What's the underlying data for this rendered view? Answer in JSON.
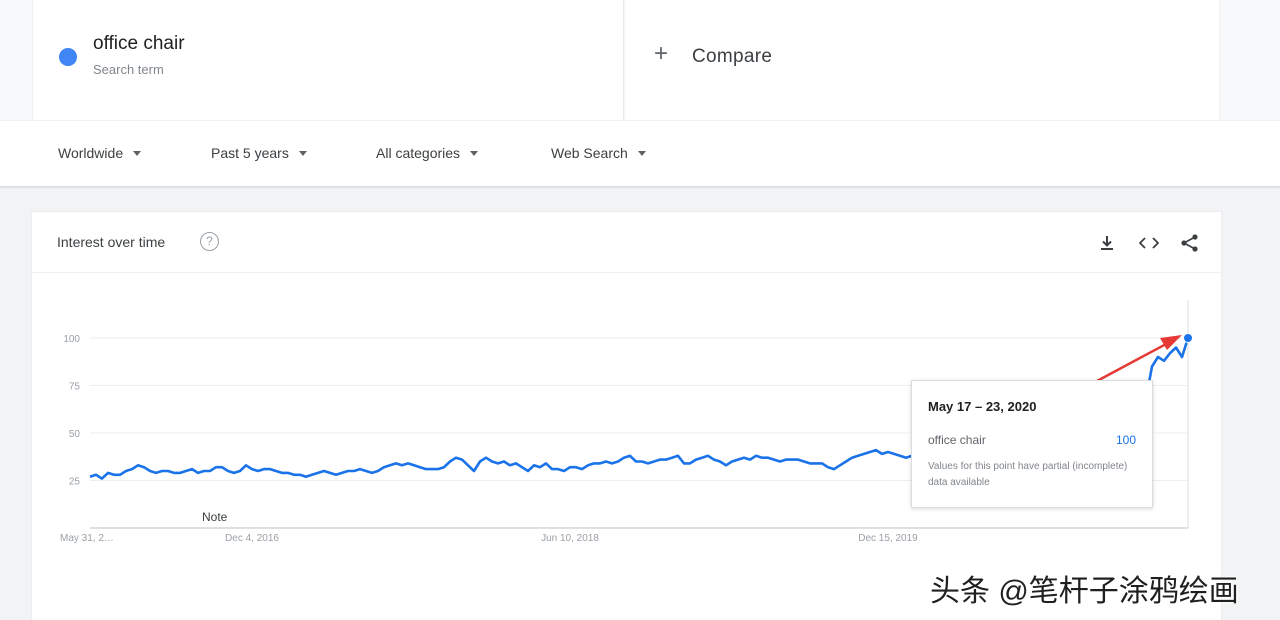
{
  "search_terms": [
    {
      "name": "office chair",
      "subtitle": "Search term",
      "color": "#4285f4"
    }
  ],
  "compare": {
    "icon": "plus-icon",
    "label": "Compare"
  },
  "filters": {
    "region": "Worldwide",
    "time_range": "Past 5 years",
    "category": "All categories",
    "search_type": "Web Search"
  },
  "card": {
    "title": "Interest over time",
    "help_icon": "help-circle-icon",
    "tools": [
      "download-icon",
      "embed-code-icon",
      "share-icon"
    ]
  },
  "tooltip": {
    "date": "May 17 – 23, 2020",
    "term": "office chair",
    "value": "100",
    "note": "Values for this point have partial (incomplete) data available"
  },
  "annotation": {
    "note_label": "Note",
    "arrow_color": "#e53935"
  },
  "watermark": "头条 @笔杆子涂鸦绘画",
  "chart_data": {
    "type": "line",
    "series": [
      {
        "name": "office chair",
        "color": "#1a73e8",
        "values": [
          27,
          28,
          26,
          29,
          28,
          28,
          30,
          31,
          33,
          32,
          30,
          29,
          30,
          30,
          29,
          29,
          30,
          31,
          29,
          30,
          30,
          32,
          32,
          30,
          29,
          30,
          33,
          31,
          30,
          31,
          31,
          30,
          29,
          29,
          28,
          28,
          27,
          28,
          29,
          30,
          29,
          28,
          29,
          30,
          30,
          31,
          30,
          29,
          30,
          32,
          33,
          34,
          33,
          34,
          33,
          32,
          31,
          31,
          31,
          32,
          35,
          37,
          36,
          33,
          30,
          35,
          37,
          35,
          34,
          35,
          33,
          34,
          32,
          30,
          33,
          32,
          34,
          31,
          31,
          30,
          32,
          32,
          31,
          33,
          34,
          34,
          35,
          34,
          35,
          37,
          38,
          35,
          35,
          34,
          35,
          36,
          36,
          37,
          38,
          34,
          34,
          36,
          37,
          38,
          36,
          35,
          33,
          35,
          36,
          37,
          36,
          38,
          37,
          37,
          36,
          35,
          36,
          36,
          36,
          35,
          34,
          34,
          34,
          32,
          31,
          33,
          35,
          37,
          38,
          39,
          40,
          41,
          39,
          40,
          39,
          38,
          37,
          38,
          37,
          36,
          37,
          38,
          39,
          45,
          40,
          39,
          38,
          40,
          41,
          39,
          38,
          37,
          36,
          40,
          42,
          41,
          43,
          42,
          41,
          40,
          42,
          44,
          45,
          44,
          46,
          43,
          45,
          44,
          46,
          48,
          50,
          52,
          54,
          56,
          60,
          65,
          68,
          85,
          90,
          88,
          92,
          95,
          90,
          100
        ],
        "partial_last_point": true
      }
    ],
    "x_tick_labels": [
      "May 31, 2…",
      "Dec 4, 2016",
      "Jun 10, 2018",
      "Dec 15, 2019"
    ],
    "x_tick_index": [
      0,
      27,
      80,
      133
    ],
    "y_tick_labels": [
      "100",
      "75",
      "50",
      "25"
    ],
    "y_ticks": [
      100,
      75,
      50,
      25
    ],
    "ylim": [
      0,
      100
    ],
    "grid": true,
    "legend": "none",
    "highlighted_point": {
      "label": "May 17 – 23, 2020",
      "value": 100
    }
  }
}
